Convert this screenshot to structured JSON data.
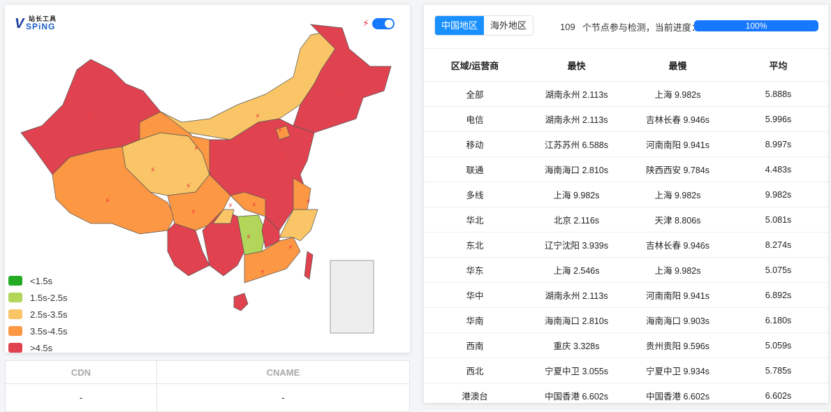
{
  "logo": {
    "cn": "站长工具",
    "en": "SPiNG"
  },
  "map": {
    "colors": {
      "lt1_5": "#24ab24",
      "1_5_2_5": "#b1d65a",
      "2_5_3_5": "#f9c566",
      "3_5_4_5": "#fc9744",
      "gt4_5": "#e0434f"
    },
    "toggle_on": true
  },
  "legend": [
    {
      "label": "<1.5s",
      "color": "#24ab24"
    },
    {
      "label": "1.5s-2.5s",
      "color": "#b1d65a"
    },
    {
      "label": "2.5s-3.5s",
      "color": "#f9c566"
    },
    {
      "label": "3.5s-4.5s",
      "color": "#fc9744"
    },
    {
      "label": ">4.5s",
      "color": "#e0434f"
    }
  ],
  "cdn_table": {
    "headers": [
      "CDN",
      "CNAME"
    ],
    "rows": [
      [
        "-",
        "-"
      ]
    ]
  },
  "tabs": [
    {
      "label": "中国地区",
      "active": true
    },
    {
      "label": "海外地区",
      "active": false
    }
  ],
  "status": {
    "count": "109",
    "text": "个节点参与检测，当前进度：",
    "progress_label": "100%",
    "progress": 100
  },
  "results": {
    "headers": [
      "区域/运营商",
      "最快",
      "最慢",
      "平均"
    ],
    "rows": [
      [
        "全部",
        "湖南永州 2.113s",
        "上海 9.982s",
        "5.888s"
      ],
      [
        "电信",
        "湖南永州 2.113s",
        "吉林长春 9.946s",
        "5.996s"
      ],
      [
        "移动",
        "江苏苏州 6.588s",
        "河南南阳 9.941s",
        "8.997s"
      ],
      [
        "联通",
        "海南海口 2.810s",
        "陕西西安 9.784s",
        "4.483s"
      ],
      [
        "多线",
        "上海 9.982s",
        "上海 9.982s",
        "9.982s"
      ],
      [
        "华北",
        "北京 2.116s",
        "天津 8.806s",
        "5.081s"
      ],
      [
        "东北",
        "辽宁沈阳 3.939s",
        "吉林长春 9.946s",
        "8.274s"
      ],
      [
        "华东",
        "上海 2.546s",
        "上海 9.982s",
        "5.075s"
      ],
      [
        "华中",
        "湖南永州 2.113s",
        "河南南阳 9.941s",
        "6.892s"
      ],
      [
        "华南",
        "海南海口 2.810s",
        "海南海口 9.903s",
        "6.180s"
      ],
      [
        "西南",
        "重庆 3.328s",
        "贵州贵阳 9.596s",
        "5.059s"
      ],
      [
        "西北",
        "宁夏中卫 3.055s",
        "宁夏中卫 9.934s",
        "5.785s"
      ],
      [
        "港澳台",
        "中国香港 6.602s",
        "中国香港 6.602s",
        "6.602s"
      ]
    ]
  }
}
